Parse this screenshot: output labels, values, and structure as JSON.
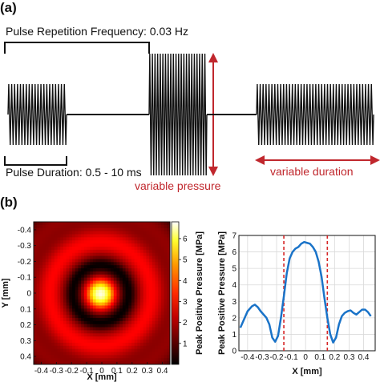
{
  "panels": {
    "a_label": "(a)",
    "b_label": "(b)"
  },
  "annotations": {
    "prf": "Pulse Repetition Frequency: 0.03 Hz",
    "pulse_duration": "Pulse Duration: 0.5 - 10 ms",
    "variable_pressure": "variable pressure",
    "variable_duration": "variable duration",
    "accent_color": "#c0272d"
  },
  "chart_data": [
    {
      "type": "line",
      "description_role": "pulse waveform schematic",
      "title": "",
      "bursts": [
        {
          "relative_amplitude": 0.5,
          "cycles": 20
        },
        {
          "relative_amplitude": 1.0,
          "cycles": 22
        },
        {
          "relative_amplitude": 0.5,
          "cycles": 40
        }
      ],
      "baseline_segments": 2,
      "line_color": "#111111"
    },
    {
      "type": "heatmap",
      "title": "",
      "xlabel": "X [mm]",
      "ylabel": "Y [mm]",
      "xlim": [
        -0.45,
        0.45
      ],
      "ylim": [
        0.45,
        -0.45
      ],
      "x_ticks": [
        "-0.4",
        "-0.3",
        "-0.2",
        "-0.1",
        "0",
        "0.1",
        "0.2",
        "0.3",
        "0.4"
      ],
      "y_ticks": [
        "-0.4",
        "-0.3",
        "-0.2",
        "-0.1",
        "0",
        "0.1",
        "0.2",
        "0.3",
        "0.4"
      ],
      "colorbar": {
        "label": "Peak Positive Pressure [MPa]",
        "ticks": [
          "1",
          "2",
          "3",
          "4",
          "5",
          "6"
        ],
        "range": [
          0,
          6.8
        ],
        "colormap": "hot"
      },
      "field": {
        "main_lobe_peak_mpa": 6.6,
        "main_lobe_radius_mm": 0.13,
        "null_ring_radius_mm": 0.17,
        "side_lobe_ring_radius_mm": 0.33,
        "side_lobe_level_mpa": 2.5
      }
    },
    {
      "type": "line",
      "title": "",
      "xlabel": "X [mm]",
      "ylabel": "Peak Positive Pressure [MPa]",
      "xlim": [
        -0.46,
        0.48
      ],
      "ylim": [
        0,
        7
      ],
      "x_ticks": [
        "-0.4",
        "-0.3",
        "-0.2",
        "-0.1",
        "0",
        "0.1",
        "0.2",
        "0.3",
        "0.4"
      ],
      "y_ticks": [
        "0",
        "1",
        "2",
        "3",
        "4",
        "5",
        "6",
        "7"
      ],
      "grid": true,
      "series": [
        {
          "color": "#1a73c8",
          "x": [
            -0.45,
            -0.42,
            -0.4,
            -0.37,
            -0.35,
            -0.33,
            -0.31,
            -0.29,
            -0.27,
            -0.25,
            -0.23,
            -0.21,
            -0.19,
            -0.17,
            -0.15,
            -0.13,
            -0.11,
            -0.09,
            -0.07,
            -0.05,
            -0.03,
            -0.01,
            0.01,
            0.03,
            0.05,
            0.07,
            0.09,
            0.11,
            0.13,
            0.15,
            0.17,
            0.19,
            0.21,
            0.23,
            0.25,
            0.27,
            0.29,
            0.31,
            0.33,
            0.35,
            0.37,
            0.39,
            0.41,
            0.43,
            0.45
          ],
          "y": [
            1.4,
            2.0,
            2.4,
            2.7,
            2.8,
            2.65,
            2.4,
            2.2,
            2.0,
            1.6,
            0.8,
            0.55,
            0.9,
            2.0,
            3.3,
            4.7,
            5.6,
            6.0,
            6.2,
            6.3,
            6.5,
            6.6,
            6.55,
            6.5,
            6.3,
            6.0,
            5.4,
            4.5,
            3.2,
            2.0,
            1.0,
            0.5,
            0.8,
            1.6,
            2.1,
            2.3,
            2.4,
            2.45,
            2.3,
            2.2,
            2.35,
            2.5,
            2.5,
            2.35,
            2.1
          ]
        }
      ],
      "vertical_lines": [
        {
          "x": -0.15,
          "color": "#d62728",
          "style": "dashed"
        },
        {
          "x": 0.15,
          "color": "#d62728",
          "style": "dashed"
        }
      ]
    }
  ]
}
